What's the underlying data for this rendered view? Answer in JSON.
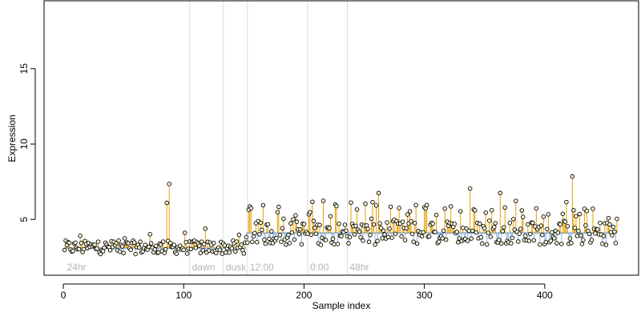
{
  "chart_data": {
    "type": "scatter",
    "title": "",
    "xlabel": "Sample index",
    "ylabel": "Expression",
    "xlim": [
      -16,
      478
    ],
    "ylim": [
      1.3,
      19.5
    ],
    "x_ticks": [
      0,
      100,
      200,
      300,
      400
    ],
    "y_ticks": [
      5,
      10,
      15
    ],
    "grid": false,
    "legend": "none",
    "baseline_segments": [
      {
        "x_start": 1,
        "x_end": 152,
        "y": 3.1
      },
      {
        "x_start": 152,
        "x_end": 460,
        "y": 4.1
      }
    ],
    "vertical_markers": [
      {
        "x": 105,
        "label": "dawn"
      },
      {
        "x": 133,
        "label": "dusk"
      },
      {
        "x": 153,
        "label": "12:00"
      },
      {
        "x": 203,
        "label": "0:00"
      },
      {
        "x": 236,
        "label": "48hr"
      }
    ],
    "corner_label": "24hr",
    "colors": {
      "above_baseline": "#e69f00",
      "below_baseline": "#8fb5e2",
      "baseline": "#8fb5e2",
      "marker_line": "#dcdcdc",
      "point_fill": "#ffffe0",
      "annotation_text": "#b4b4b4"
    },
    "highlighted_points": [
      {
        "x": 86,
        "y": 6.1
      },
      {
        "x": 88,
        "y": 7.35
      },
      {
        "x": 262,
        "y": 6.75
      },
      {
        "x": 338,
        "y": 7.05
      },
      {
        "x": 363,
        "y": 6.75
      },
      {
        "x": 423,
        "y": 7.85
      }
    ]
  }
}
